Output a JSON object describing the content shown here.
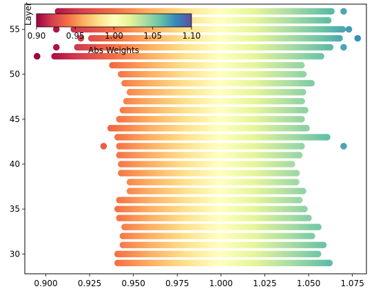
{
  "chart_data": {
    "type": "scatter",
    "title": "",
    "xlabel": "",
    "ylabel": "Layer",
    "xlim": [
      0.888,
      1.083
    ],
    "ylim": [
      27.8,
      57.8
    ],
    "x_ticks": [
      0.9,
      0.925,
      0.95,
      0.975,
      1.0,
      1.025,
      1.05,
      1.075
    ],
    "x_tick_labels": [
      "0.900",
      "0.925",
      "0.950",
      "0.975",
      "1.000",
      "1.025",
      "1.050",
      "1.075"
    ],
    "y_ticks": [
      30,
      35,
      40,
      45,
      50,
      55
    ],
    "y_tick_labels": [
      "30",
      "35",
      "40",
      "45",
      "50",
      "55"
    ],
    "grid": false,
    "colormap": "Spectral",
    "color_range": [
      0.9,
      1.1
    ],
    "colorbar": {
      "label": "Abs Weights",
      "ticks": [
        0.9,
        0.95,
        1.0,
        1.05,
        1.1
      ],
      "tick_labels": [
        "0.90",
        "0.95",
        "1.00",
        "1.05",
        "1.10"
      ],
      "placement": "inset upper-left"
    },
    "layers": [
      {
        "layer": 29,
        "min": 0.941,
        "max": 1.062,
        "outliers": []
      },
      {
        "layer": 30,
        "min": 0.941,
        "max": 1.056,
        "outliers": []
      },
      {
        "layer": 31,
        "min": 0.944,
        "max": 1.059,
        "outliers": []
      },
      {
        "layer": 32,
        "min": 0.944,
        "max": 1.053,
        "outliers": []
      },
      {
        "layer": 33,
        "min": 0.945,
        "max": 1.056,
        "outliers": []
      },
      {
        "layer": 34,
        "min": 0.942,
        "max": 1.05,
        "outliers": []
      },
      {
        "layer": 35,
        "min": 0.941,
        "max": 1.048,
        "outliers": []
      },
      {
        "layer": 36,
        "min": 0.942,
        "max": 1.045,
        "outliers": []
      },
      {
        "layer": 37,
        "min": 0.948,
        "max": 1.048,
        "outliers": []
      },
      {
        "layer": 38,
        "min": 0.948,
        "max": 1.043,
        "outliers": []
      },
      {
        "layer": 39,
        "min": 0.943,
        "max": 1.044,
        "outliers": []
      },
      {
        "layer": 40,
        "min": 0.943,
        "max": 1.041,
        "outliers": []
      },
      {
        "layer": 41,
        "min": 0.942,
        "max": 1.045,
        "outliers": []
      },
      {
        "layer": 42,
        "min": 0.942,
        "max": 1.046,
        "outliers": [
          0.933,
          1.07
        ]
      },
      {
        "layer": 43,
        "min": 0.941,
        "max": 1.061,
        "outliers": []
      },
      {
        "layer": 44,
        "min": 0.937,
        "max": 1.05,
        "outliers": []
      },
      {
        "layer": 45,
        "min": 0.942,
        "max": 1.046,
        "outliers": []
      },
      {
        "layer": 46,
        "min": 0.944,
        "max": 1.048,
        "outliers": []
      },
      {
        "layer": 47,
        "min": 0.946,
        "max": 1.047,
        "outliers": []
      },
      {
        "layer": 48,
        "min": 0.948,
        "max": 1.047,
        "outliers": []
      },
      {
        "layer": 49,
        "min": 0.945,
        "max": 1.052,
        "outliers": []
      },
      {
        "layer": 50,
        "min": 0.943,
        "max": 1.048,
        "outliers": []
      },
      {
        "layer": 51,
        "min": 0.938,
        "max": 1.046,
        "outliers": []
      },
      {
        "layer": 52,
        "min": 0.905,
        "max": 1.058,
        "outliers": [
          0.895
        ]
      },
      {
        "layer": 53,
        "min": 0.918,
        "max": 1.063,
        "outliers": [
          0.906,
          1.07
        ]
      },
      {
        "layer": 54,
        "min": 0.926,
        "max": 1.068,
        "outliers": [
          0.92,
          1.078
        ]
      },
      {
        "layer": 55,
        "min": 0.916,
        "max": 1.07,
        "outliers": [
          0.906,
          1.073
        ]
      },
      {
        "layer": 56,
        "min": 0.913,
        "max": 1.062,
        "outliers": []
      },
      {
        "layer": 57,
        "min": 0.907,
        "max": 1.063,
        "outliers": [
          1.07
        ]
      }
    ]
  }
}
